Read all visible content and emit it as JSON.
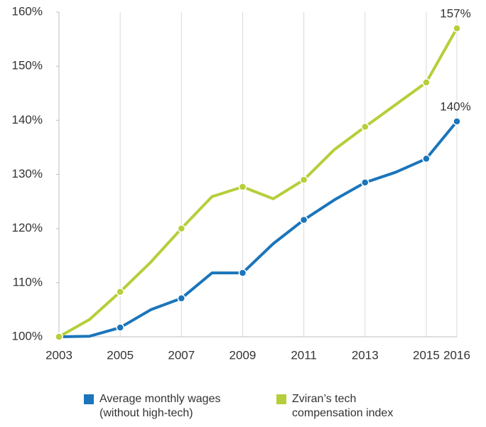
{
  "chart_data": {
    "type": "line",
    "x": [
      2003,
      2004,
      2005,
      2006,
      2007,
      2008,
      2009,
      2010,
      2011,
      2012,
      2013,
      2014,
      2015,
      2016
    ],
    "series": [
      {
        "name": "Average monthly wages (without high-tech)",
        "color": "#1a75bb",
        "values": [
          100,
          100.1,
          101.7,
          105,
          107.1,
          111.8,
          111.8,
          117.2,
          121.6,
          125.3,
          128.5,
          130.4,
          132.9,
          139.8
        ],
        "value_labels": [
          null,
          null,
          null,
          null,
          null,
          null,
          null,
          null,
          null,
          null,
          null,
          null,
          null,
          "140%"
        ]
      },
      {
        "name": "Zviran’s tech compensation index",
        "color": "#b5cf3a",
        "values": [
          100,
          103.2,
          108.3,
          113.8,
          120,
          125.9,
          127.7,
          125.5,
          129,
          134.6,
          138.8,
          142.9,
          147,
          157
        ],
        "value_labels": [
          null,
          null,
          null,
          null,
          null,
          null,
          null,
          null,
          null,
          null,
          null,
          null,
          null,
          "157%"
        ]
      }
    ],
    "xlim": [
      2003,
      2016
    ],
    "xticks": [
      2003,
      2005,
      2007,
      2009,
      2011,
      2013,
      2015,
      2016
    ],
    "ylim": [
      100,
      160
    ],
    "yticks": [
      {
        "value": 100,
        "label": "100%"
      },
      {
        "value": 110,
        "label": "110%"
      },
      {
        "value": 120,
        "label": "120%"
      },
      {
        "value": 130,
        "label": "130%"
      },
      {
        "value": 140,
        "label": "140%"
      },
      {
        "value": 150,
        "label": "150%"
      },
      {
        "value": 160,
        "label": "160%"
      }
    ],
    "grid": "x",
    "legend": "bottom"
  }
}
